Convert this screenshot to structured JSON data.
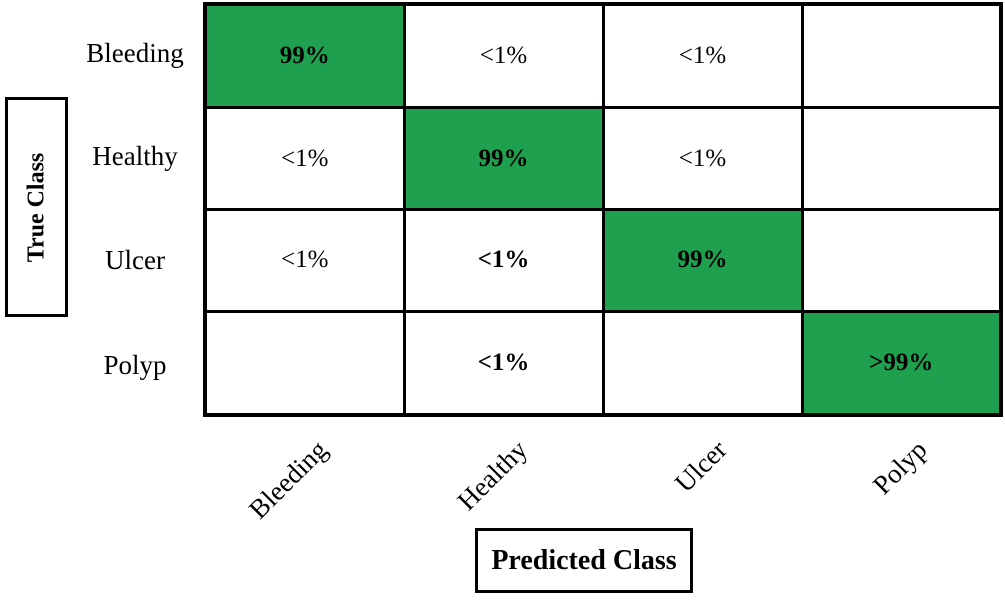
{
  "colors": {
    "diagonal_green": "#1FA04E",
    "border_black": "#000000",
    "text_black": "#000000",
    "background_white": "#ffffff"
  },
  "chart_data": {
    "type": "heatmap",
    "xlabel": "Predicted Class",
    "ylabel": "True Class",
    "x_categories": [
      "Bleeding",
      "Healthy",
      "Ulcer",
      "Polyp"
    ],
    "y_categories": [
      "Bleeding",
      "Healthy",
      "Ulcer",
      "Polyp"
    ],
    "cells": [
      [
        "99%",
        "<1%",
        "<1%",
        ""
      ],
      [
        "<1%",
        "99%",
        "<1%",
        ""
      ],
      [
        "<1%",
        "<1%",
        "99%",
        ""
      ],
      [
        "",
        "<1%",
        "",
        ">99%"
      ]
    ],
    "highlighted_cells": [
      [
        0,
        0
      ],
      [
        1,
        1
      ],
      [
        2,
        2
      ],
      [
        3,
        3
      ]
    ],
    "bold_offdiagonal_cells": [
      [
        2,
        1
      ],
      [
        3,
        1
      ]
    ],
    "legend_position": "none",
    "grid": "on"
  }
}
